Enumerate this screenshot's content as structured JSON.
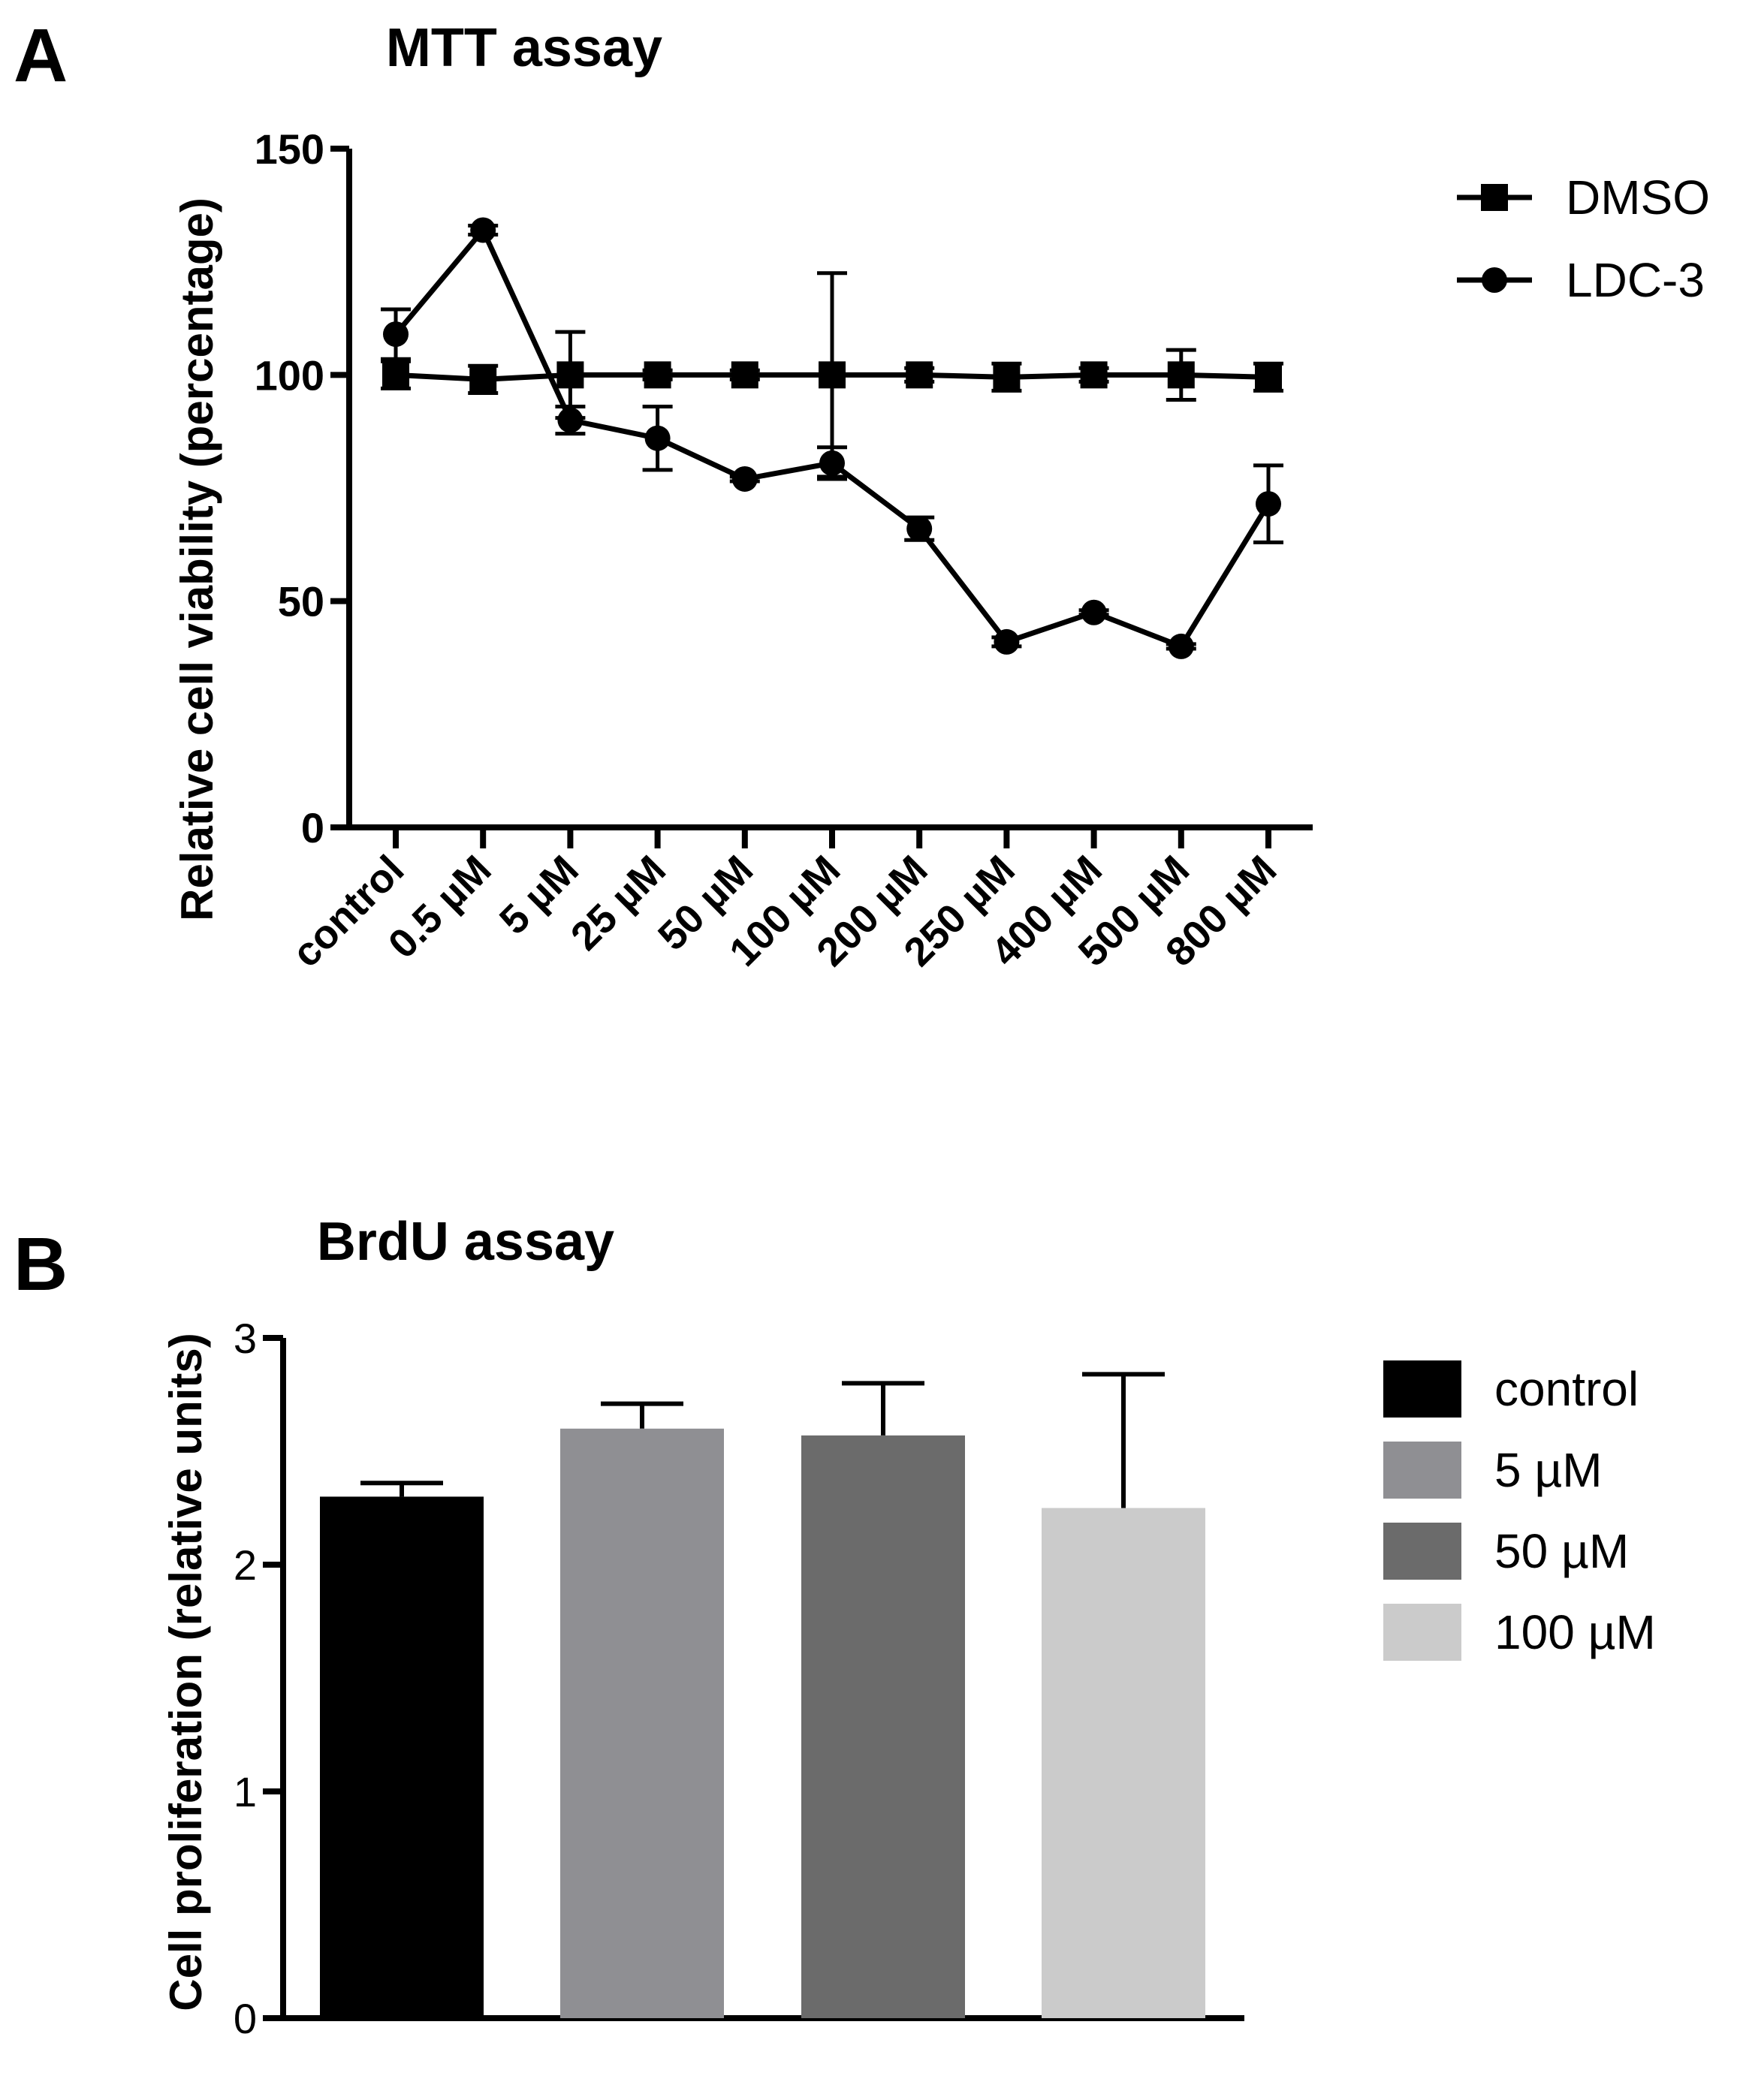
{
  "chart_data": [
    {
      "panel_label": "A",
      "type": "line",
      "title": "MTT assay",
      "xlabel": "",
      "ylabel": "Relative cell viability (percentage)",
      "categories": [
        "control",
        "0.5 µM",
        "5 µM",
        "25 µM",
        "50 µM",
        "100 µM",
        "200 µM",
        "250 µM",
        "400 µM",
        "500 µM",
        "800 µM"
      ],
      "ylim": [
        0,
        150
      ],
      "yticks": [
        0,
        50,
        100,
        150
      ],
      "series": [
        {
          "name": "DMSO",
          "marker": "square",
          "values": [
            100,
            99,
            100,
            100,
            100,
            100,
            100,
            99.5,
            100,
            100,
            99.5
          ],
          "errors": [
            3,
            3,
            9.5,
            1,
            1,
            22.5,
            1.5,
            3,
            1.5,
            5.5,
            3
          ]
        },
        {
          "name": "LDC-3",
          "marker": "circle",
          "values": [
            109,
            132,
            90,
            86,
            77,
            80.5,
            66,
            41,
            47.5,
            40,
            71.5
          ],
          "errors": [
            5.5,
            1,
            3,
            7,
            0.5,
            3.5,
            2.5,
            1,
            0.5,
            0.5,
            8.5
          ]
        }
      ],
      "legend": "top-right",
      "grid": false
    },
    {
      "panel_label": "B",
      "type": "bar",
      "title": "BrdU assay",
      "xlabel": "",
      "ylabel": "Cell proliferation (relative units)",
      "categories": [
        "control",
        "5 µM",
        "50 µM",
        "100 µM"
      ],
      "values": [
        2.3,
        2.6,
        2.57,
        2.25
      ],
      "errors": [
        0.06,
        0.11,
        0.23,
        0.59
      ],
      "colors": [
        "#000000",
        "#8f8f93",
        "#6b6b6b",
        "#cbcbcb"
      ],
      "ylim": [
        0,
        3
      ],
      "yticks": [
        0,
        1,
        2,
        3
      ],
      "legend": "top-right",
      "grid": false
    }
  ]
}
